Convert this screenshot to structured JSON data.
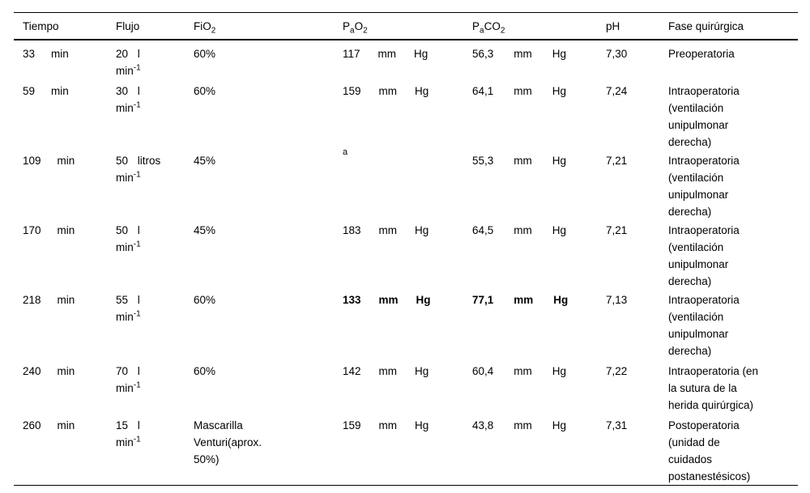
{
  "table": {
    "columns": [
      {
        "label": "Tiempo"
      },
      {
        "label": "Flujo"
      },
      {
        "parts": {
          "t1": "FiO",
          "s2": "2"
        }
      },
      {
        "parts": {
          "t1": "P",
          "sa": "a",
          "t2": "O",
          "s2": "2"
        }
      },
      {
        "parts": {
          "t1": "P",
          "sa": "a",
          "t2": "CO",
          "s2": "2"
        }
      },
      {
        "label": "pH"
      },
      {
        "label": "Fase quirúrgica"
      }
    ],
    "rows": [
      {
        "tiempo": {
          "value": "33",
          "unit": "min"
        },
        "flujo": {
          "line1": "20 l",
          "unit": "min",
          "sup": "-1"
        },
        "fio2": "60%",
        "pao2": {
          "v": "117",
          "u1": "mm",
          "u2": "Hg",
          "note": ""
        },
        "paco2": {
          "v": "56,3",
          "u1": "mm",
          "u2": "Hg"
        },
        "ph": "7,30",
        "fase": "Preoperatoria"
      },
      {
        "tiempo": {
          "value": "59",
          "unit": "min"
        },
        "flujo": {
          "line1": "30 l",
          "unit": "min",
          "sup": "-1"
        },
        "fio2": "60%",
        "pao2": {
          "v": "159",
          "u1": "mm",
          "u2": "Hg",
          "note": ""
        },
        "paco2": {
          "v": "64,1",
          "u1": "mm",
          "u2": "Hg"
        },
        "ph": "7,24",
        "fase": "Intraoperatoria\n(ventilación\nunipulmonar\nderecha)"
      },
      {
        "tiempo": {
          "value": "109",
          "unit": "min"
        },
        "flujo": {
          "line1": "50 litros",
          "unit": "min",
          "sup": "-1"
        },
        "fio2": "45%",
        "pao2": {
          "v": "",
          "u1": "",
          "u2": "",
          "note": "a"
        },
        "paco2": {
          "v": "55,3",
          "u1": "mm",
          "u2": "Hg"
        },
        "ph": "7,21",
        "fase": "Intraoperatoria\n(ventilación\nunipulmonar\nderecha)"
      },
      {
        "tiempo": {
          "value": "170",
          "unit": "min"
        },
        "flujo": {
          "line1": "50 l",
          "unit": "min",
          "sup": "-1"
        },
        "fio2": "45%",
        "pao2": {
          "v": "183",
          "u1": "mm",
          "u2": "Hg",
          "note": ""
        },
        "paco2": {
          "v": "64,5",
          "u1": "mm",
          "u2": "Hg"
        },
        "ph": "7,21",
        "fase": "Intraoperatoria\n(ventilación\nunipulmonar\nderecha)"
      },
      {
        "tiempo": {
          "value": "218",
          "unit": "min"
        },
        "flujo": {
          "line1": "55 l",
          "unit": "min",
          "sup": "-1"
        },
        "fio2": "60%",
        "pao2": {
          "v": "133",
          "u1": "mm",
          "u2": "Hg",
          "note": ""
        },
        "paco2": {
          "v": "77,1",
          "u1": "mm",
          "u2": "Hg"
        },
        "ph": "7,13",
        "fase": "Intraoperatoria\n(ventilación\nunipulmonar\nderecha)"
      },
      {
        "tiempo": {
          "value": "240",
          "unit": "min"
        },
        "flujo": {
          "line1": "70 l",
          "unit": "min",
          "sup": "-1"
        },
        "fio2": "60%",
        "pao2": {
          "v": "142",
          "u1": "mm",
          "u2": "Hg",
          "note": ""
        },
        "paco2": {
          "v": "60,4",
          "u1": "mm",
          "u2": "Hg"
        },
        "ph": "7,22",
        "fase": "Intraoperatoria (en\nla sutura de la\nherida quirúrgica)"
      },
      {
        "tiempo": {
          "value": "260",
          "unit": "min"
        },
        "flujo": {
          "line1": "15 l",
          "unit": "min",
          "sup": "-1"
        },
        "fio2": "Mascarilla\nVenturi(aprox.\n50%)",
        "pao2": {
          "v": "159",
          "u1": "mm",
          "u2": "Hg",
          "note": ""
        },
        "paco2": {
          "v": "43,8",
          "u1": "mm",
          "u2": "Hg"
        },
        "ph": "7,31",
        "fase": "Postoperatoria\n(unidad de\ncuidados\npostanestésicos)"
      }
    ]
  },
  "colors": {
    "text": "#000000",
    "background": "#ffffff",
    "rule": "#000000"
  }
}
